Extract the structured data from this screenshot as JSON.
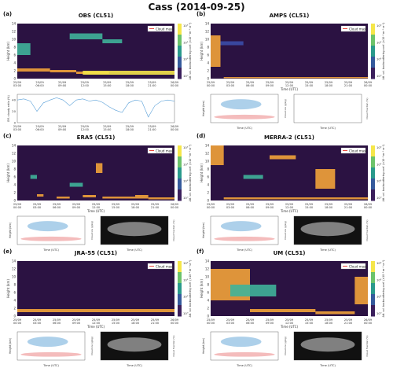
{
  "title": "Cass (2014-09-25)",
  "colors": {
    "panel_bg": "#2b1242",
    "cloud_mask": "#e8463c",
    "low_cloud": "#f2a33a",
    "blue_cloud": "#6aa9d9",
    "red_cloud": "#f0a0a0"
  },
  "common": {
    "height_label": "Height (km)",
    "time_label": "Time (UTC)",
    "bsc_label": "Att. vol. backscattering coef. (×10⁻⁶ m⁻¹ sr⁻¹)",
    "cloud_mask_label": "Cloud mask",
    "height_ticks": [
      "0",
      "2",
      "4",
      "6",
      "8",
      "10",
      "12",
      "14"
    ],
    "time_ticks_obs": [
      "25/09\n03:00",
      "25/09\n06:00",
      "25/09\n09:00",
      "25/09\n12:00",
      "25/09\n15:00",
      "25/09\n18:00",
      "25/09\n21:00",
      "26/09\n00:00"
    ],
    "time_ticks_model": [
      "25/09\n00:00",
      "25/09\n03:00",
      "25/09\n06:00",
      "25/09\n09:00",
      "25/09\n12:00",
      "25/09\n15:00",
      "25/09\n18:00",
      "25/09\n21:00",
      "26/09\n00:00"
    ],
    "cb_ticks": [
      "10⁰",
      "10¹",
      "10²",
      "10³"
    ],
    "qc_label": "Cloud ice (g/kg)",
    "qc_label2": "Cloud liq. (g/kg)",
    "cf_label": "Cloud fraction (%)",
    "sr_label": "Eff. radar reflectivity",
    "cf_ticks": [
      "0",
      "20",
      "40",
      "60",
      "80",
      "100"
    ]
  },
  "panels": [
    {
      "letter": "(a)",
      "title": "OBS (CL51)"
    },
    {
      "letter": "(b)",
      "title": "AMPS (CL51)"
    },
    {
      "letter": "(c)",
      "title": "ERA5 (CL51)"
    },
    {
      "letter": "(d)",
      "title": "MERRA-2 (CL51)"
    },
    {
      "letter": "(e)",
      "title": "JRA-55 (CL51)"
    },
    {
      "letter": "(f)",
      "title": "UM (CL51)"
    }
  ],
  "chart_data": [
    {
      "type": "heatmap",
      "panel": "(a)",
      "name": "OBS (CL51)",
      "ylim": [
        0,
        14
      ],
      "xlim_hours": [
        0,
        24
      ],
      "cloud_layers": [
        {
          "t0": 0,
          "t1": 5,
          "h0": 1.8,
          "h1": 2.6,
          "intensity": "high"
        },
        {
          "t0": 5,
          "t1": 9,
          "h0": 1.6,
          "h1": 2.2,
          "intensity": "high"
        },
        {
          "t0": 9,
          "t1": 14,
          "h0": 1.2,
          "h1": 1.8,
          "intensity": "high"
        },
        {
          "t0": 10,
          "t1": 24,
          "h0": 1.0,
          "h1": 2.0,
          "intensity": "very-high"
        },
        {
          "t0": 8,
          "t1": 13,
          "h0": 10.0,
          "h1": 11.5,
          "intensity": "medium"
        },
        {
          "t0": 13,
          "t1": 16,
          "h0": 9.0,
          "h1": 10.0,
          "intensity": "medium"
        },
        {
          "t0": 0,
          "t1": 2,
          "h0": 6.0,
          "h1": 9.0,
          "intensity": "medium"
        }
      ],
      "ratio_series": {
        "ylabel": "Eff. cloudy ratio (%)",
        "yticks": [
          "0",
          "20",
          "40"
        ],
        "values": [
          40,
          42,
          38,
          20,
          35,
          40,
          44,
          40,
          30,
          40,
          42,
          38,
          40,
          36,
          28,
          22,
          18,
          35,
          40,
          38,
          10,
          30,
          38,
          40,
          38
        ]
      }
    },
    {
      "type": "heatmap",
      "panel": "(b)",
      "name": "AMPS (CL51)",
      "ylim": [
        0,
        14
      ],
      "xlim_hours": [
        0,
        24
      ],
      "cloud_layers": [
        {
          "t0": 0,
          "t1": 1.5,
          "h0": 3.0,
          "h1": 11.0,
          "intensity": "high"
        },
        {
          "t0": 1.5,
          "t1": 5,
          "h0": 8.5,
          "h1": 9.5,
          "intensity": "low"
        },
        {
          "t0": 2,
          "t1": 24,
          "h0": 0.1,
          "h1": 0.4,
          "intensity": "high"
        }
      ]
    },
    {
      "type": "heatmap",
      "panel": "(c)",
      "name": "ERA5 (CL51)",
      "ylim": [
        0,
        14
      ],
      "xlim_hours": [
        0,
        24
      ],
      "cloud_layers": [
        {
          "t0": 2,
          "t1": 3,
          "h0": 5.5,
          "h1": 6.5,
          "intensity": "medium"
        },
        {
          "t0": 3,
          "t1": 4,
          "h0": 1.0,
          "h1": 1.6,
          "intensity": "high"
        },
        {
          "t0": 6,
          "t1": 8,
          "h0": 0.5,
          "h1": 1.0,
          "intensity": "high"
        },
        {
          "t0": 8,
          "t1": 10,
          "h0": 3.5,
          "h1": 4.5,
          "intensity": "medium"
        },
        {
          "t0": 10,
          "t1": 12,
          "h0": 0.8,
          "h1": 1.4,
          "intensity": "high"
        },
        {
          "t0": 12,
          "t1": 13,
          "h0": 7.0,
          "h1": 9.5,
          "intensity": "high"
        },
        {
          "t0": 13,
          "t1": 18,
          "h0": 0.5,
          "h1": 1.0,
          "intensity": "high"
        },
        {
          "t0": 18,
          "t1": 20,
          "h0": 0.5,
          "h1": 1.4,
          "intensity": "high"
        },
        {
          "t0": 20,
          "t1": 24,
          "h0": 0.3,
          "h1": 0.8,
          "intensity": "high"
        }
      ]
    },
    {
      "type": "heatmap",
      "panel": "(d)",
      "name": "MERRA-2 (CL51)",
      "ylim": [
        0,
        14
      ],
      "xlim_hours": [
        0,
        24
      ],
      "cloud_layers": [
        {
          "t0": 0,
          "t1": 2,
          "h0": 9.0,
          "h1": 14.0,
          "intensity": "high"
        },
        {
          "t0": 5,
          "t1": 8,
          "h0": 5.5,
          "h1": 6.5,
          "intensity": "medium"
        },
        {
          "t0": 9,
          "t1": 13,
          "h0": 10.5,
          "h1": 11.5,
          "intensity": "high"
        },
        {
          "t0": 16,
          "t1": 19,
          "h0": 3.0,
          "h1": 8.0,
          "intensity": "high"
        },
        {
          "t0": 2,
          "t1": 24,
          "h0": 0.3,
          "h1": 0.8,
          "intensity": "high"
        }
      ]
    },
    {
      "type": "heatmap",
      "panel": "(e)",
      "name": "JRA-55 (CL51)",
      "ylim": [
        0,
        14
      ],
      "xlim_hours": [
        0,
        24
      ],
      "cloud_layers": [
        {
          "t0": 0,
          "t1": 24,
          "h0": 1.0,
          "h1": 1.8,
          "intensity": "high"
        }
      ]
    },
    {
      "type": "heatmap",
      "panel": "(f)",
      "name": "UM (CL51)",
      "ylim": [
        0,
        14
      ],
      "xlim_hours": [
        0,
        24
      ],
      "cloud_layers": [
        {
          "t0": 0,
          "t1": 6,
          "h0": 4.0,
          "h1": 12.0,
          "intensity": "high"
        },
        {
          "t0": 3,
          "t1": 10,
          "h0": 5.0,
          "h1": 8.0,
          "intensity": "medium"
        },
        {
          "t0": 6,
          "t1": 16,
          "h0": 1.0,
          "h1": 1.8,
          "intensity": "high"
        },
        {
          "t0": 16,
          "t1": 22,
          "h0": 0.5,
          "h1": 1.2,
          "intensity": "high"
        },
        {
          "t0": 22,
          "t1": 24,
          "h0": 3.0,
          "h1": 10.0,
          "intensity": "high"
        }
      ]
    }
  ]
}
